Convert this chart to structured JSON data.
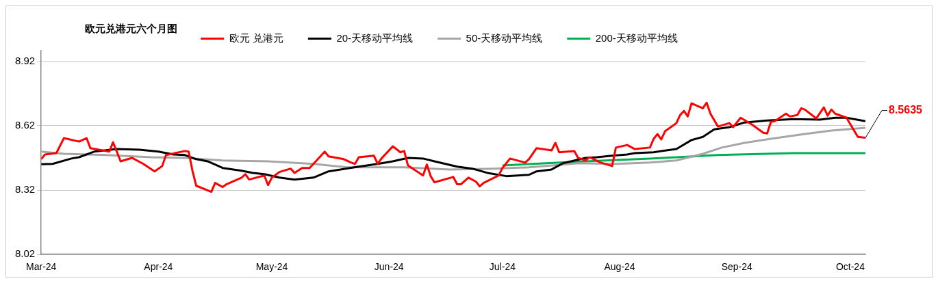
{
  "chart_data": {
    "type": "line",
    "title": "欧元兑港元六个月图",
    "legend": "top",
    "grid": "y",
    "marker": "none",
    "line_style": "solid",
    "ylim": [
      8.02,
      8.97
    ],
    "yticks": [
      8.02,
      8.32,
      8.62,
      8.92
    ],
    "xlim": [
      "2024-03-01",
      "2024-10-05"
    ],
    "xticks": [
      {
        "value": "2024-03-01",
        "label": "Mar-24"
      },
      {
        "value": "2024-04-01",
        "label": "Apr-24"
      },
      {
        "value": "2024-05-01",
        "label": "May-24"
      },
      {
        "value": "2024-06-01",
        "label": "Jun-24"
      },
      {
        "value": "2024-07-01",
        "label": "Jul-24"
      },
      {
        "value": "2024-08-01",
        "label": "Aug-24"
      },
      {
        "value": "2024-09-01",
        "label": "Sep-24"
      },
      {
        "value": "2024-10-01",
        "label": "Oct-24"
      }
    ],
    "annotations": [
      {
        "text": "8.5635",
        "x": "2024-10-05",
        "y": 8.5635
      }
    ],
    "series": [
      {
        "name": "欧元 兑港元",
        "color": "#ff0000",
        "x": [
          "2024-03-01",
          "2024-03-02",
          "2024-03-05",
          "2024-03-07",
          "2024-03-11",
          "2024-03-13",
          "2024-03-14",
          "2024-03-19",
          "2024-03-20",
          "2024-03-22",
          "2024-03-25",
          "2024-03-28",
          "2024-03-31",
          "2024-04-02",
          "2024-04-03",
          "2024-04-08",
          "2024-04-09",
          "2024-04-10",
          "2024-04-11",
          "2024-04-15",
          "2024-04-16",
          "2024-04-18",
          "2024-04-19",
          "2024-04-23",
          "2024-04-24",
          "2024-04-25",
          "2024-04-29",
          "2024-04-30",
          "2024-05-01",
          "2024-05-03",
          "2024-05-06",
          "2024-05-07",
          "2024-05-09",
          "2024-05-11",
          "2024-05-15",
          "2024-05-16",
          "2024-05-20",
          "2024-05-22",
          "2024-05-23",
          "2024-05-24",
          "2024-05-28",
          "2024-05-29",
          "2024-05-30",
          "2024-06-02",
          "2024-06-04",
          "2024-06-05",
          "2024-06-06",
          "2024-06-10",
          "2024-06-11",
          "2024-06-12",
          "2024-06-13",
          "2024-06-18",
          "2024-06-19",
          "2024-06-20",
          "2024-06-22",
          "2024-06-24",
          "2024-06-25",
          "2024-06-26",
          "2024-06-30",
          "2024-07-01",
          "2024-07-03",
          "2024-07-07",
          "2024-07-08",
          "2024-07-10",
          "2024-07-14",
          "2024-07-15",
          "2024-07-16",
          "2024-07-20",
          "2024-07-21",
          "2024-07-23",
          "2024-07-24",
          "2024-07-27",
          "2024-07-30",
          "2024-07-31",
          "2024-08-03",
          "2024-08-05",
          "2024-08-09",
          "2024-08-10",
          "2024-08-11",
          "2024-08-12",
          "2024-08-13",
          "2024-08-16",
          "2024-08-17",
          "2024-08-18",
          "2024-08-19",
          "2024-08-20",
          "2024-08-23",
          "2024-08-24",
          "2024-08-25",
          "2024-08-27",
          "2024-08-30",
          "2024-08-31",
          "2024-09-02",
          "2024-09-05",
          "2024-09-08",
          "2024-09-09",
          "2024-09-10",
          "2024-09-11",
          "2024-09-14",
          "2024-09-15",
          "2024-09-17",
          "2024-09-18",
          "2024-09-19",
          "2024-09-22",
          "2024-09-24",
          "2024-09-25",
          "2024-09-26",
          "2024-09-27",
          "2024-09-30",
          "2024-10-02",
          "2024-10-03",
          "2024-10-05"
        ],
        "values": [
          8.464,
          8.486,
          8.492,
          8.562,
          8.546,
          8.562,
          8.515,
          8.499,
          8.543,
          8.454,
          8.47,
          8.442,
          8.407,
          8.432,
          8.483,
          8.502,
          8.499,
          8.41,
          8.34,
          8.312,
          8.353,
          8.334,
          8.347,
          8.378,
          8.394,
          8.369,
          8.388,
          8.343,
          8.378,
          8.404,
          8.42,
          8.4,
          8.423,
          8.423,
          8.499,
          8.477,
          8.464,
          8.448,
          8.442,
          8.473,
          8.48,
          8.442,
          8.467,
          8.524,
          8.496,
          8.502,
          8.435,
          8.388,
          8.439,
          8.385,
          8.356,
          8.381,
          8.347,
          8.347,
          8.378,
          8.359,
          8.337,
          8.353,
          8.388,
          8.423,
          8.467,
          8.448,
          8.464,
          8.515,
          8.505,
          8.54,
          8.496,
          8.502,
          8.47,
          8.458,
          8.473,
          8.448,
          8.432,
          8.518,
          8.53,
          8.511,
          8.518,
          8.559,
          8.581,
          8.556,
          8.594,
          8.632,
          8.67,
          8.689,
          8.663,
          8.724,
          8.701,
          8.727,
          8.676,
          8.616,
          8.632,
          8.613,
          8.657,
          8.625,
          8.587,
          8.584,
          8.638,
          8.641,
          8.676,
          8.663,
          8.67,
          8.701,
          8.695,
          8.654,
          8.705,
          8.667,
          8.695,
          8.676,
          8.657,
          8.597,
          8.568,
          8.5635
        ]
      },
      {
        "name": "20-天移动平均线",
        "color": "#000000",
        "x": [
          "2024-03-01",
          "2024-03-04",
          "2024-03-09",
          "2024-03-11",
          "2024-03-15",
          "2024-03-21",
          "2024-03-27",
          "2024-04-01",
          "2024-04-05",
          "2024-04-08",
          "2024-04-11",
          "2024-04-14",
          "2024-04-18",
          "2024-04-23",
          "2024-04-26",
          "2024-04-29",
          "2024-05-03",
          "2024-05-07",
          "2024-05-12",
          "2024-05-16",
          "2024-05-24",
          "2024-05-29",
          "2024-06-02",
          "2024-06-06",
          "2024-06-10",
          "2024-06-13",
          "2024-06-19",
          "2024-06-23",
          "2024-06-27",
          "2024-07-02",
          "2024-07-08",
          "2024-07-10",
          "2024-07-14",
          "2024-07-17",
          "2024-07-23",
          "2024-07-26",
          "2024-07-30",
          "2024-08-03",
          "2024-08-05",
          "2024-08-10",
          "2024-08-12",
          "2024-08-16",
          "2024-08-20",
          "2024-08-23",
          "2024-08-26",
          "2024-08-30",
          "2024-09-03",
          "2024-09-09",
          "2024-09-16",
          "2024-09-23",
          "2024-09-27",
          "2024-09-30",
          "2024-10-05"
        ],
        "values": [
          8.44,
          8.442,
          8.467,
          8.473,
          8.499,
          8.511,
          8.508,
          8.499,
          8.486,
          8.483,
          8.464,
          8.454,
          8.423,
          8.41,
          8.4,
          8.394,
          8.378,
          8.369,
          8.378,
          8.407,
          8.429,
          8.442,
          8.454,
          8.47,
          8.467,
          8.454,
          8.429,
          8.42,
          8.4,
          8.385,
          8.391,
          8.407,
          8.416,
          8.445,
          8.47,
          8.473,
          8.48,
          8.486,
          8.492,
          8.496,
          8.502,
          8.511,
          8.553,
          8.568,
          8.603,
          8.613,
          8.635,
          8.644,
          8.651,
          8.648,
          8.657,
          8.657,
          8.641
        ]
      },
      {
        "name": "50-天移动平均线",
        "color": "#a6a6a6",
        "x": [
          "2024-03-01",
          "2024-03-07",
          "2024-03-18",
          "2024-03-30",
          "2024-04-08",
          "2024-04-18",
          "2024-04-30",
          "2024-05-12",
          "2024-05-21",
          "2024-06-05",
          "2024-06-17",
          "2024-06-29",
          "2024-07-08",
          "2024-07-17",
          "2024-07-21",
          "2024-07-31",
          "2024-08-09",
          "2024-08-16",
          "2024-08-23",
          "2024-08-28",
          "2024-09-03",
          "2024-09-10",
          "2024-09-19",
          "2024-09-26",
          "2024-10-05"
        ],
        "values": [
          8.499,
          8.489,
          8.483,
          8.473,
          8.47,
          8.458,
          8.454,
          8.442,
          8.426,
          8.426,
          8.416,
          8.42,
          8.426,
          8.439,
          8.445,
          8.442,
          8.448,
          8.458,
          8.489,
          8.518,
          8.54,
          8.559,
          8.581,
          8.597,
          8.61
        ]
      },
      {
        "name": "200-天移动平均线",
        "color": "#00b050",
        "x": [
          "2024-07-01",
          "2024-07-23",
          "2024-08-09",
          "2024-08-27",
          "2024-09-16",
          "2024-10-05"
        ],
        "values": [
          8.435,
          8.454,
          8.467,
          8.483,
          8.492,
          8.492
        ]
      }
    ]
  }
}
